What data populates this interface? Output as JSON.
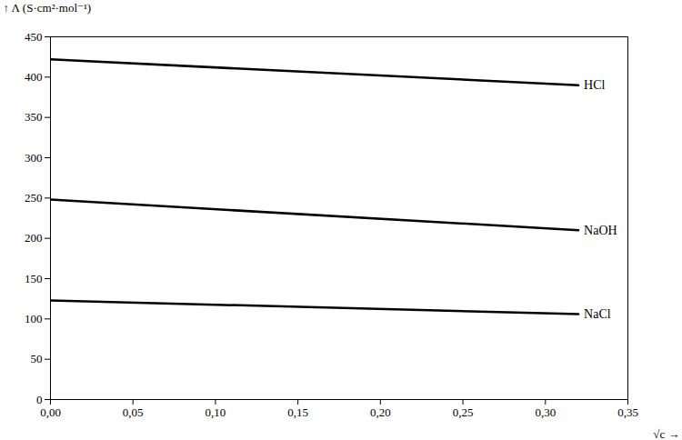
{
  "chart_data": {
    "type": "line",
    "x_label": "√c",
    "y_label": "Λ (S·cm²·mol⁻¹)",
    "x": [
      0.0,
      0.32
    ],
    "series": [
      {
        "name": "HCl",
        "values": [
          422,
          390
        ]
      },
      {
        "name": "NaOH",
        "values": [
          248,
          210
        ]
      },
      {
        "name": "NaCl",
        "values": [
          123,
          106
        ]
      }
    ],
    "xlim": [
      0,
      0.35
    ],
    "xticks": [
      {
        "value": 0.0,
        "label": "0,00"
      },
      {
        "value": 0.05,
        "label": "0,05"
      },
      {
        "value": 0.1,
        "label": "0,10"
      },
      {
        "value": 0.15,
        "label": "0,15"
      },
      {
        "value": 0.2,
        "label": "0,20"
      },
      {
        "value": 0.25,
        "label": "0,25"
      },
      {
        "value": 0.3,
        "label": "0,30"
      },
      {
        "value": 0.35,
        "label": "0,35"
      }
    ],
    "ylim": [
      0,
      450
    ],
    "yticks": [
      0,
      50,
      100,
      150,
      200,
      250,
      300,
      350,
      400,
      450
    ],
    "grid": false
  }
}
